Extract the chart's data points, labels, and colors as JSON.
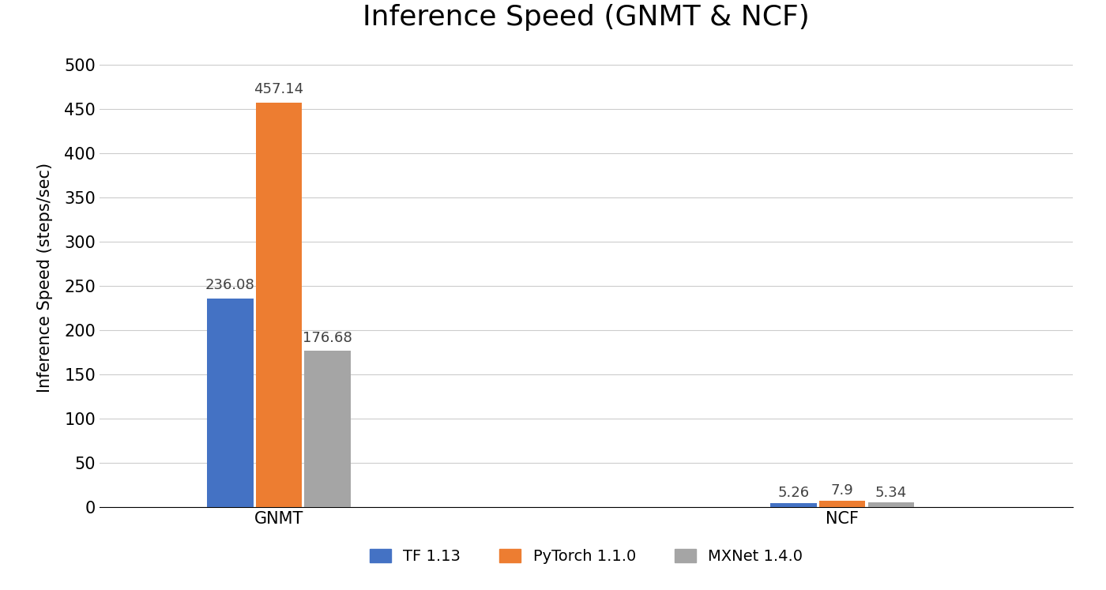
{
  "title": "Inference Speed (GNMT & NCF)",
  "ylabel": "Inference Speed (steps/sec)",
  "categories": [
    "GNMT",
    "NCF"
  ],
  "series": [
    {
      "name": "TF 1.13",
      "color": "#4472C4",
      "values": [
        236.08,
        5.26
      ]
    },
    {
      "name": "PyTorch 1.1.0",
      "color": "#ED7D31",
      "values": [
        457.14,
        7.9
      ]
    },
    {
      "name": "MXNet 1.4.0",
      "color": "#A5A5A5",
      "values": [
        176.68,
        5.34
      ]
    }
  ],
  "ylim": [
    0,
    520
  ],
  "yticks": [
    0,
    50,
    100,
    150,
    200,
    250,
    300,
    350,
    400,
    450,
    500
  ],
  "bar_width": 0.18,
  "title_fontsize": 26,
  "axis_label_fontsize": 15,
  "tick_fontsize": 15,
  "legend_fontsize": 14,
  "value_label_fontsize": 13,
  "background_color": "#FFFFFF",
  "grid_color": "#CCCCCC",
  "group_centers": [
    1.0,
    3.2
  ],
  "xlim": [
    0.3,
    4.1
  ]
}
